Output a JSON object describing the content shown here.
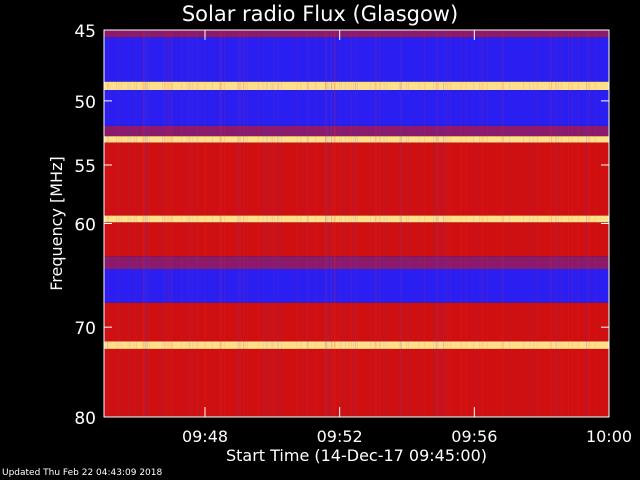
{
  "chart_data": {
    "type": "heatmap",
    "title": "Solar radio Flux (Glasgow)",
    "ylabel": "Frequency [MHz]",
    "xlabel": "Start Time (14-Dec-17 09:45:00)",
    "y_scale": "log",
    "ylim": [
      45,
      80
    ],
    "y_ticks": [
      "45",
      "50",
      "55",
      "60",
      "70",
      "80"
    ],
    "x_ticks": [
      "09:48",
      "09:52",
      "09:56",
      "10:00"
    ],
    "x_range": [
      "09:45:00",
      "10:00:00"
    ],
    "bands": [
      {
        "from": 45.0,
        "to": 45.5,
        "level": "mid"
      },
      {
        "from": 45.5,
        "to": 48.6,
        "level": "low"
      },
      {
        "from": 48.6,
        "to": 49.2,
        "level": "peak"
      },
      {
        "from": 49.2,
        "to": 51.9,
        "level": "low"
      },
      {
        "from": 51.9,
        "to": 52.7,
        "level": "mid"
      },
      {
        "from": 52.7,
        "to": 53.2,
        "level": "peak"
      },
      {
        "from": 53.2,
        "to": 59.3,
        "level": "high"
      },
      {
        "from": 59.3,
        "to": 59.9,
        "level": "peak"
      },
      {
        "from": 59.9,
        "to": 63.0,
        "level": "high"
      },
      {
        "from": 63.0,
        "to": 64.2,
        "level": "mid"
      },
      {
        "from": 64.2,
        "to": 67.5,
        "level": "low"
      },
      {
        "from": 67.5,
        "to": 71.5,
        "level": "high"
      },
      {
        "from": 71.5,
        "to": 72.3,
        "level": "peak"
      },
      {
        "from": 72.3,
        "to": 80.0,
        "level": "high"
      }
    ],
    "colors": {
      "low": "#2a1ef0",
      "mid": "#8c1a6a",
      "high": "#d01010",
      "peak": "#ffe08a"
    }
  },
  "footer": "Updated Thu Feb 22 04:43:09 2018"
}
